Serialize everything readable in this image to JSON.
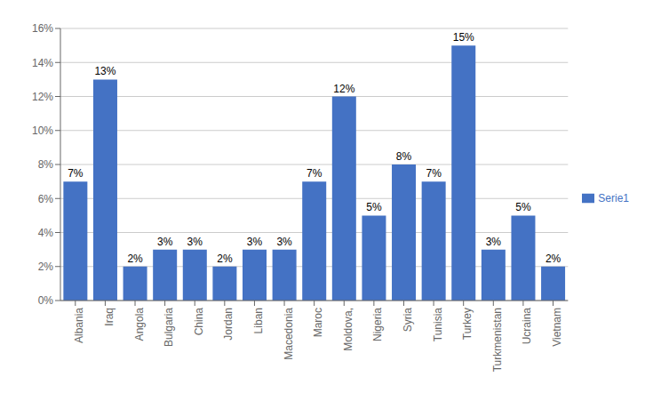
{
  "chart_data": {
    "type": "bar",
    "categories": [
      "Albania",
      "Iraq",
      "Angola",
      "Bulgaria",
      "China",
      "Jordan",
      "Liban",
      "Macedonia",
      "Maroc",
      "Moldova,",
      "Nigeria",
      "Syria",
      "Tunisia",
      "Turkey",
      "Turkmenistan",
      "Ucraina",
      "Vietnam"
    ],
    "series": [
      {
        "name": "Serie1",
        "color": "#4472c4",
        "values": [
          7,
          13,
          2,
          3,
          3,
          2,
          3,
          3,
          7,
          12,
          5,
          8,
          7,
          15,
          3,
          5,
          2
        ],
        "value_labels": [
          "7%",
          "13%",
          "2%",
          "3%",
          "3%",
          "2%",
          "3%",
          "3%",
          "7%",
          "12%",
          "5%",
          "8%",
          "7%",
          "15%",
          "3%",
          "5%",
          "2%"
        ]
      }
    ],
    "ylim": [
      0,
      16
    ],
    "yticks": [
      {
        "value": 0,
        "label": "0%"
      },
      {
        "value": 2,
        "label": "2%"
      },
      {
        "value": 4,
        "label": "4%"
      },
      {
        "value": 6,
        "label": "6%"
      },
      {
        "value": 8,
        "label": "8%"
      },
      {
        "value": 10,
        "label": "10%"
      },
      {
        "value": 12,
        "label": "12%"
      },
      {
        "value": 14,
        "label": "14%"
      },
      {
        "value": 16,
        "label": "16%"
      }
    ],
    "grid": true,
    "legend": "right",
    "data_labels": true
  }
}
